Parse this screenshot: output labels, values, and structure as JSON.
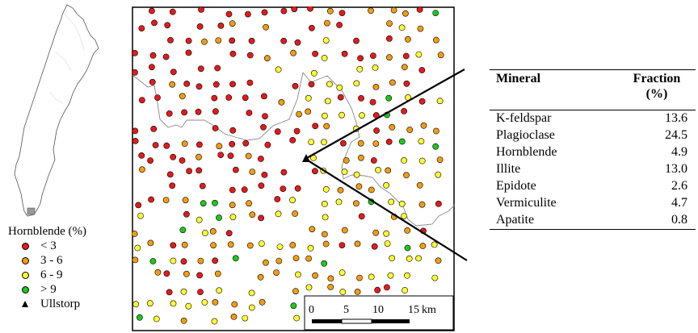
{
  "legend": {
    "title": "Hornblende (%)",
    "items": [
      {
        "label": "< 3",
        "color": "#e41a1c",
        "symbol": "dot"
      },
      {
        "label": "3 - 6",
        "color": "#f39c12",
        "symbol": "dot"
      },
      {
        "label": "6 - 9",
        "color": "#ffff33",
        "symbol": "dot"
      },
      {
        "label": "> 9",
        "color": "#1ec71e",
        "symbol": "dot"
      },
      {
        "label": "Ullstorp",
        "color": "#000000",
        "symbol": "triangle"
      }
    ]
  },
  "scalebar": {
    "ticks": [
      "0",
      "5",
      "10",
      "15"
    ],
    "unit": "km"
  },
  "table": {
    "col1": "Mineral",
    "col2_line1": "Fraction",
    "col2_line2": "(%)",
    "rows": [
      {
        "mineral": "K-feldspar",
        "fraction": "13.6"
      },
      {
        "mineral": "Plagioclase",
        "fraction": "24.5"
      },
      {
        "mineral": "Hornblende",
        "fraction": "4.9"
      },
      {
        "mineral": "Illite",
        "fraction": "13.0"
      },
      {
        "mineral": "Epidote",
        "fraction": "2.6"
      },
      {
        "mineral": "Vermiculite",
        "fraction": "4.7"
      },
      {
        "mineral": "Apatite",
        "fraction": "0.8"
      }
    ]
  },
  "colors": {
    "low": "#e41a1c",
    "mid": "#f39c12",
    "high": "#ffff33",
    "veryhigh": "#1ec71e",
    "border_line": "#888888"
  }
}
